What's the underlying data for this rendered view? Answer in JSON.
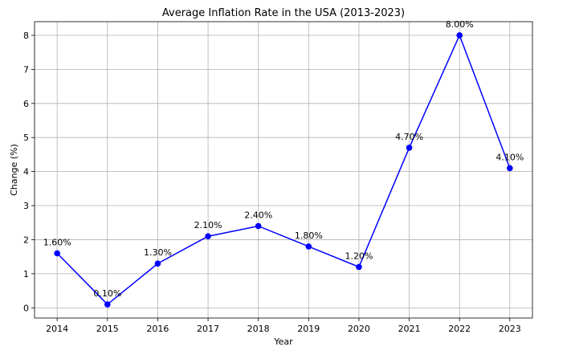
{
  "chart_data": {
    "type": "line",
    "title": "Average Inflation Rate in the USA (2013-2023)",
    "xlabel": "Year",
    "ylabel": "Change (%)",
    "x": [
      2014,
      2015,
      2016,
      2017,
      2018,
      2019,
      2020,
      2021,
      2022,
      2023
    ],
    "x_tick_labels": [
      "2014",
      "2015",
      "2016",
      "2017",
      "2018",
      "2019",
      "2020",
      "2021",
      "2022",
      "2023"
    ],
    "y_ticks": [
      0,
      1,
      2,
      3,
      4,
      5,
      6,
      7,
      8
    ],
    "y_tick_labels": [
      "0",
      "1",
      "2",
      "3",
      "4",
      "5",
      "6",
      "7",
      "8"
    ],
    "ylim": [
      -0.3,
      8.4
    ],
    "xlim": [
      2013.55,
      2023.45
    ],
    "grid": true,
    "series": [
      {
        "color": "#0000ff",
        "values": [
          1.6,
          0.1,
          1.3,
          2.1,
          2.4,
          1.8,
          1.2,
          4.7,
          8.0,
          4.1
        ],
        "data_labels": [
          "1.60%",
          "0.10%",
          "1.30%",
          "2.10%",
          "2.40%",
          "1.80%",
          "1.20%",
          "4.70%",
          "8.00%",
          "4.10%"
        ]
      }
    ]
  }
}
